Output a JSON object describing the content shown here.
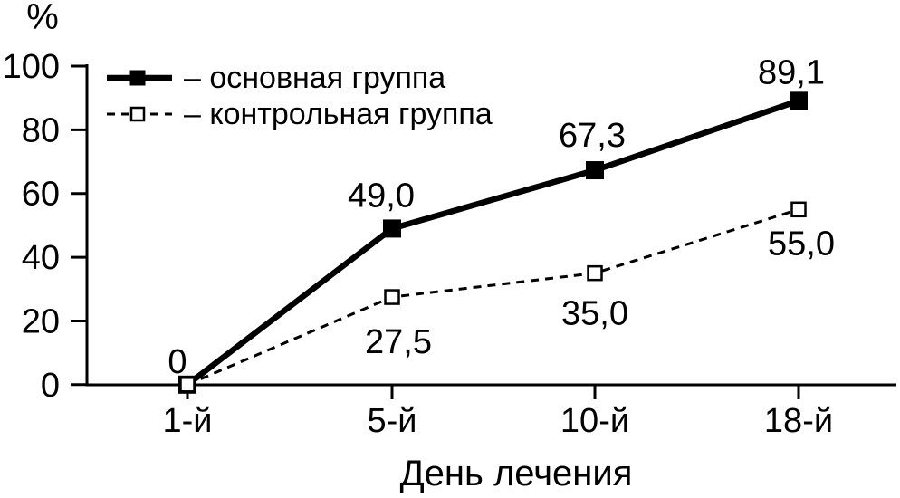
{
  "chart_data": {
    "type": "line",
    "title": "",
    "ylabel": "%",
    "xlabel": "День лечения",
    "categories": [
      "1-й",
      "5-й",
      "10-й",
      "18-й"
    ],
    "yticks": [
      0,
      20,
      40,
      60,
      80,
      100
    ],
    "ylim": [
      0,
      100
    ],
    "grid": false,
    "legend_position": "top-left-inside",
    "colors": {
      "foreground": "#000000",
      "background": "#ffffff"
    },
    "series": [
      {
        "name": "основная группа",
        "legend_label": "– основная группа",
        "line_style": "solid",
        "marker": "filled-square",
        "color": "#000000",
        "values": [
          0,
          49.0,
          67.3,
          89.1
        ],
        "point_labels": [
          "0",
          "49,0",
          "67,3",
          "89,1"
        ],
        "label_position": "above"
      },
      {
        "name": "контрольная группа",
        "legend_label": "– контрольная группа",
        "line_style": "dashed",
        "marker": "open-square",
        "color": "#000000",
        "values": [
          0,
          27.5,
          35.0,
          55.0
        ],
        "point_labels": [
          "",
          "27,5",
          "35,0",
          "55,0"
        ],
        "label_position": "below"
      }
    ]
  }
}
